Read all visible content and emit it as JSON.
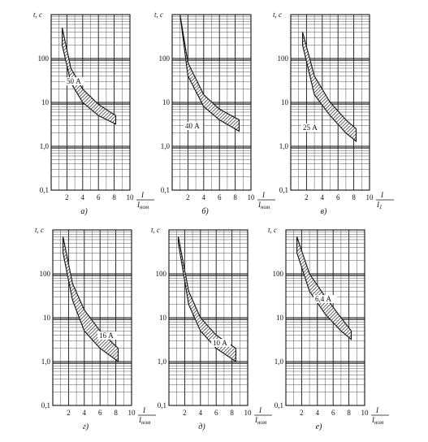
{
  "chart_data": [
    {
      "type": "area",
      "panel_label": "а)",
      "rated_current_label": "50 А",
      "xlabel_num": "I",
      "xlabel_den": "I_ном",
      "xlabel_den_main": "I",
      "xlabel_den_sub": "ном",
      "ylabel": "t, c",
      "x_ticks": [
        "2",
        "4",
        "6",
        "8",
        "10"
      ],
      "y_ticks": [
        "0,1",
        "1,0",
        "10",
        "100"
      ],
      "xlim": [
        0,
        10
      ],
      "ylim": [
        0.1,
        1000
      ],
      "y_scale": "log",
      "band_upper": {
        "x": [
          1.4,
          2.5,
          4,
          6,
          8.2
        ],
        "y": [
          500,
          60,
          20,
          9,
          5
        ]
      },
      "band_lower": {
        "x": [
          1.4,
          2.5,
          4,
          6,
          8.2
        ],
        "y": [
          200,
          28,
          10,
          5,
          3.2
        ]
      }
    },
    {
      "type": "area",
      "panel_label": "б)",
      "rated_current_label": "40 А",
      "xlabel_num": "I",
      "xlabel_den": "I_ном",
      "xlabel_den_main": "I",
      "xlabel_den_sub": "ном",
      "ylabel": "t, c",
      "x_ticks": [
        "2",
        "4",
        "6",
        "8",
        "10"
      ],
      "y_ticks": [
        "0,1",
        "1,0",
        "10",
        "100"
      ],
      "xlim": [
        0,
        10
      ],
      "ylim": [
        0.1,
        1000
      ],
      "y_scale": "log",
      "band_upper": {
        "x": [
          1.0,
          2,
          4,
          6,
          8.5
        ],
        "y": [
          1000,
          80,
          15,
          7,
          4
        ]
      },
      "band_lower": {
        "x": [
          1.0,
          2,
          4,
          6,
          8.5
        ],
        "y": [
          1000,
          40,
          8,
          4,
          2.2
        ]
      }
    },
    {
      "type": "area",
      "panel_label": "в)",
      "rated_current_label": "25 А",
      "xlabel_num": "I",
      "xlabel_den": "I_1",
      "xlabel_den_main": "I",
      "xlabel_den_sub": "1",
      "ylabel": "t, c",
      "x_ticks": [
        "2",
        "4",
        "6",
        "8",
        "10"
      ],
      "y_ticks": [
        "0,1",
        "1,0",
        "10",
        "100"
      ],
      "xlim": [
        0,
        10
      ],
      "ylim": [
        0.1,
        1000
      ],
      "y_scale": "log",
      "band_upper": {
        "x": [
          1.5,
          3,
          5,
          7,
          8.3
        ],
        "y": [
          400,
          40,
          10,
          4,
          2.5
        ]
      },
      "band_lower": {
        "x": [
          1.5,
          3,
          5,
          7,
          8.3
        ],
        "y": [
          200,
          15,
          5,
          2,
          1.3
        ]
      }
    },
    {
      "type": "area",
      "panel_label": "г)",
      "rated_current_label": "16 А",
      "xlabel_num": "I",
      "xlabel_den": "I_ном",
      "xlabel_den_main": "I",
      "xlabel_den_sub": "ном",
      "ylabel": "t, c",
      "x_ticks": [
        "2",
        "4",
        "6",
        "8",
        "10"
      ],
      "y_ticks": [
        "0,1",
        "1,0",
        "10",
        "100"
      ],
      "xlim": [
        0,
        10
      ],
      "ylim": [
        0.1,
        1000
      ],
      "y_scale": "log",
      "band_upper": {
        "x": [
          1.3,
          2.5,
          4,
          6,
          8.3
        ],
        "y": [
          700,
          60,
          15,
          5,
          2
        ]
      },
      "band_lower": {
        "x": [
          1.3,
          2.5,
          4,
          6,
          8.3
        ],
        "y": [
          300,
          25,
          5,
          2,
          1
        ]
      }
    },
    {
      "type": "area",
      "panel_label": "д)",
      "rated_current_label": "10 А",
      "xlabel_num": "I",
      "xlabel_den": "I_ном",
      "xlabel_den_main": "I",
      "xlabel_den_sub": "ном",
      "ylabel": "t, c",
      "x_ticks": [
        "2",
        "4",
        "6",
        "8",
        "10"
      ],
      "y_ticks": [
        "0,1",
        "1,0",
        "10",
        "100"
      ],
      "xlim": [
        0,
        10
      ],
      "ylim": [
        0.1,
        1000
      ],
      "y_scale": "log",
      "band_upper": {
        "x": [
          1.2,
          2.5,
          4,
          6,
          8.5
        ],
        "y": [
          700,
          40,
          10,
          4,
          2
        ]
      },
      "band_lower": {
        "x": [
          1.2,
          2.5,
          4,
          6,
          8.5
        ],
        "y": [
          500,
          20,
          5,
          2,
          1
        ]
      }
    },
    {
      "type": "area",
      "panel_label": "е)",
      "rated_current_label": "6,4 А",
      "xlabel_num": "I",
      "xlabel_den": "I_ном",
      "xlabel_den_main": "I",
      "xlabel_den_sub": "ном",
      "ylabel": "t, c",
      "x_ticks": [
        "2",
        "4",
        "6",
        "8",
        "10"
      ],
      "y_ticks": [
        "0,1",
        "1,0",
        "10",
        "100"
      ],
      "xlim": [
        0,
        10
      ],
      "ylim": [
        0.1,
        1000
      ],
      "y_scale": "log",
      "band_upper": {
        "x": [
          1.4,
          3,
          5,
          7,
          8.3
        ],
        "y": [
          700,
          100,
          30,
          10,
          5
        ]
      },
      "band_lower": {
        "x": [
          1.4,
          3,
          5,
          7,
          8.3
        ],
        "y": [
          300,
          40,
          12,
          5,
          3.2
        ]
      }
    }
  ]
}
